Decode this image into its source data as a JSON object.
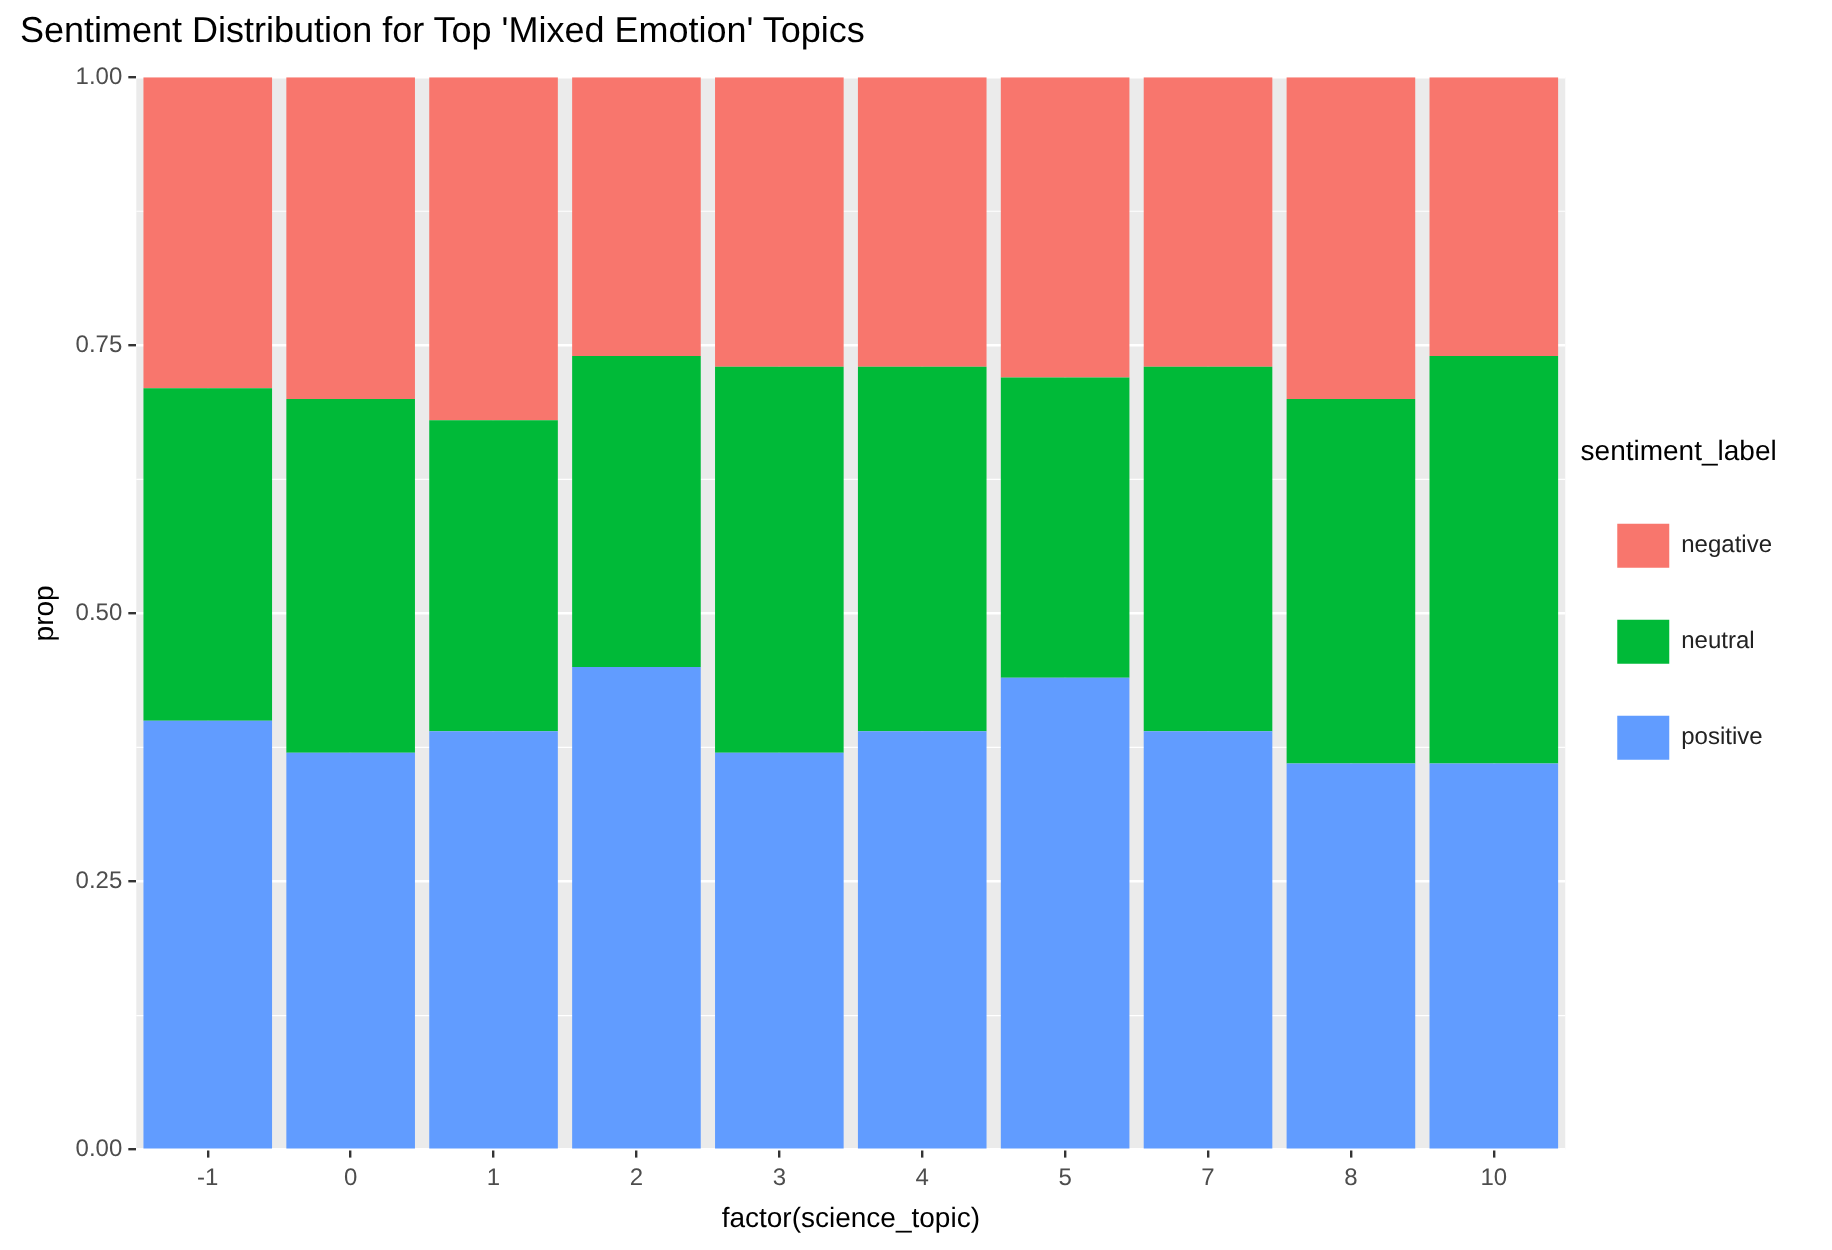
{
  "chart_data": {
    "type": "bar",
    "title": "Sentiment Distribution for Top 'Mixed Emotion' Topics",
    "xlabel": "factor(science_topic)",
    "ylabel": "prop",
    "legend_title": "sentiment_label",
    "categories": [
      "-1",
      "0",
      "1",
      "2",
      "3",
      "4",
      "5",
      "7",
      "8",
      "10"
    ],
    "series": [
      {
        "name": "positive",
        "color": "#619cff",
        "values": [
          0.4,
          0.37,
          0.39,
          0.45,
          0.37,
          0.39,
          0.44,
          0.39,
          0.36,
          0.36
        ]
      },
      {
        "name": "neutral",
        "color": "#00ba38",
        "values": [
          0.31,
          0.33,
          0.29,
          0.29,
          0.36,
          0.34,
          0.28,
          0.34,
          0.34,
          0.38
        ]
      },
      {
        "name": "negative",
        "color": "#f8766d",
        "values": [
          0.29,
          0.3,
          0.32,
          0.26,
          0.27,
          0.27,
          0.28,
          0.27,
          0.3,
          0.26
        ]
      }
    ],
    "stacked": true,
    "ylim": [
      0,
      1
    ],
    "yticks": [
      {
        "value": 0,
        "label": "0.00"
      },
      {
        "value": 0.25,
        "label": "0.25"
      },
      {
        "value": 0.5,
        "label": "0.50"
      },
      {
        "value": 0.75,
        "label": "0.75"
      },
      {
        "value": 1,
        "label": "1.00"
      }
    ],
    "grid": true,
    "legend": "right"
  }
}
